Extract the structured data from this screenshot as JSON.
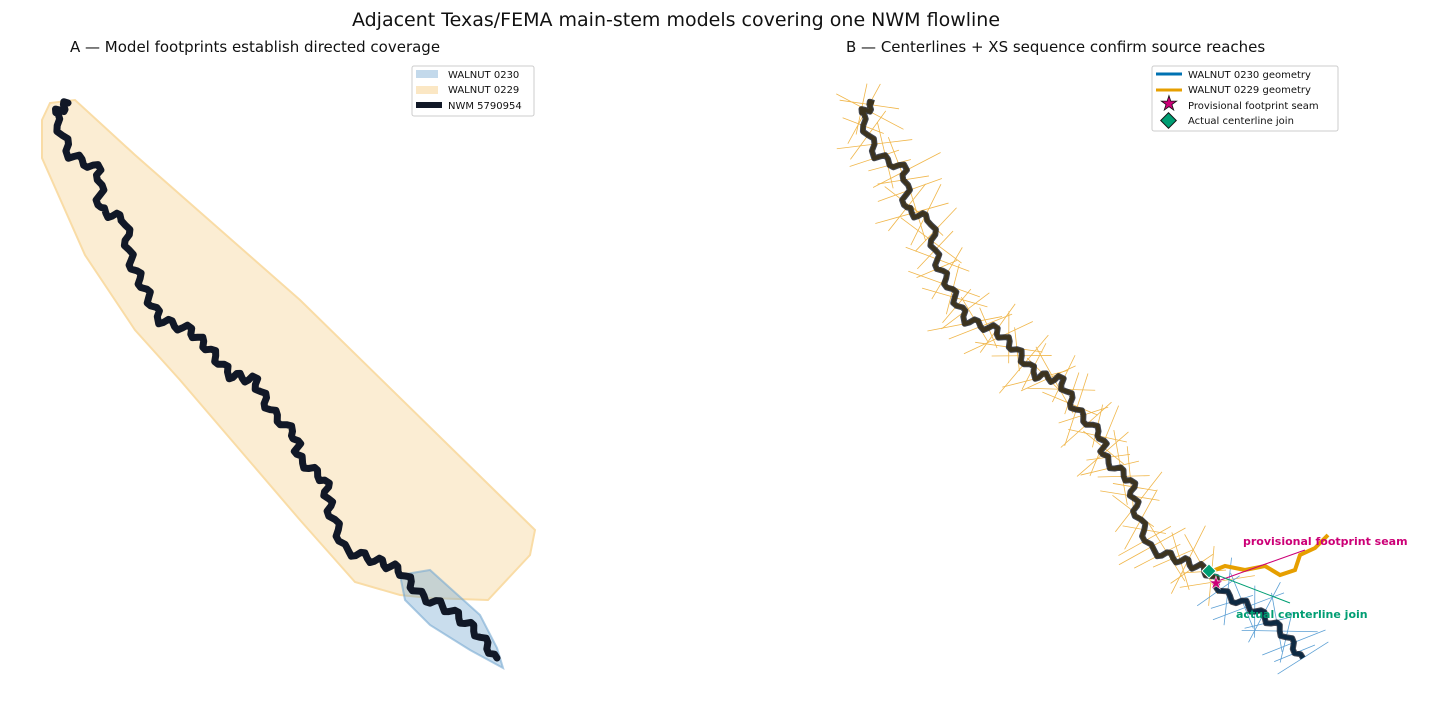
{
  "title": "Adjacent Texas/FEMA main-stem models covering one NWM flowline",
  "panels": [
    {
      "title": "A — Model footprints establish directed coverage",
      "legend": [
        "WALNUT 0230",
        "WALNUT 0229",
        "NWM 5790954"
      ]
    },
    {
      "title": "B — Centerlines + XS sequence confirm source reaches",
      "legend": [
        "WALNUT 0230 geometry",
        "WALNUT 0229 geometry",
        "Provisional footprint seam",
        "Actual centerline join"
      ],
      "annotations": [
        "provisional footprint seam",
        "actual centerline join"
      ]
    }
  ]
}
